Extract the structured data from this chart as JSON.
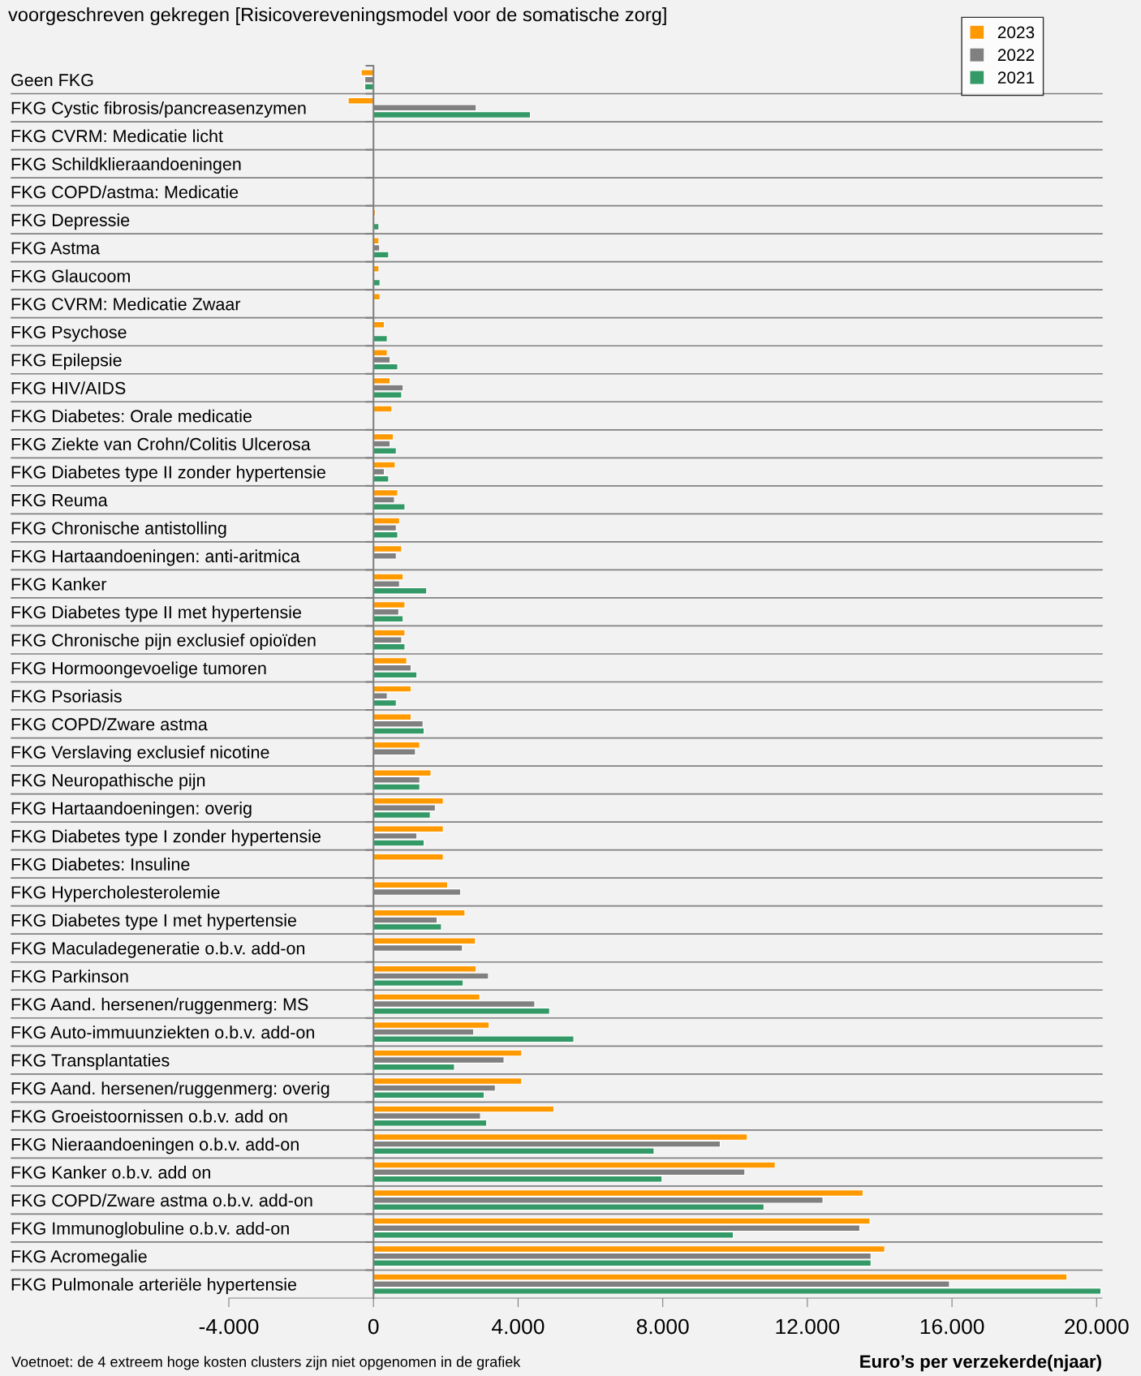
{
  "chart_data": {
    "type": "bar",
    "orientation": "horizontal",
    "title": "voorgeschreven gekregen [Risicovereveningsmodel voor de somatische zorg]",
    "xlabel": "Euro’s per verzekerde(njaar)",
    "annotations": [
      "Voetnoet: de 4 extreem hoge kosten clusters zijn niet opgenomen in de grafiek"
    ],
    "categories": [
      "Geen FKG",
      "FKG Cystic fibrosis/pancreasenzymen",
      "FKG CVRM: Medicatie licht",
      "FKG Schildklieraandoeningen",
      "FKG COPD/astma: Medicatie",
      "FKG Depressie",
      "FKG Astma",
      "FKG Glaucoom",
      "FKG CVRM: Medicatie Zwaar",
      "FKG Psychose",
      "FKG Epilepsie",
      "FKG HIV/AIDS",
      "FKG Diabetes: Orale medicatie",
      "FKG Ziekte van Crohn/Colitis Ulcerosa",
      "FKG Diabetes type II zonder hypertensie",
      "FKG Reuma",
      "FKG Chronische antistolling",
      "FKG Hartaandoeningen: anti-aritmica",
      "FKG Kanker",
      "FKG Diabetes type II met hypertensie",
      "FKG Chronische pijn exclusief opioïden",
      "FKG Hormoongevoelige tumoren",
      "FKG Psoriasis",
      "FKG COPD/Zware astma",
      "FKG Verslaving exclusief nicotine",
      "FKG Neuropathische pijn",
      "FKG Hartaandoeningen: overig",
      "FKG Diabetes type I zonder hypertensie",
      "FKG Diabetes: Insuline",
      "FKG Hypercholesterolemie",
      "FKG Diabetes type I met hypertensie",
      "FKG Maculadegeneratie o.b.v. add-on",
      "FKG Parkinson",
      "FKG Aand. hersenen/ruggenmerg: MS",
      "FKG Auto-immuunziekten o.b.v. add-on",
      "FKG Transplantaties",
      "FKG Aand. hersenen/ruggenmerg: overig",
      "FKG Groeistoornissen o.b.v. add on",
      "FKG Nieraandoeningen o.b.v. add-on",
      "FKG Kanker o.b.v. add on",
      "FKG COPD/Zware astma o.b.v. add-on",
      "FKG Immunoglobuline o.b.v. add-on",
      "FKG Acromegalie",
      "FKG Pulmonale arteriële hypertensie"
    ],
    "series": [
      {
        "name": "2023",
        "color": "#ff9900",
        "values": [
          -340,
          -700,
          null,
          null,
          null,
          50,
          150,
          150,
          180,
          300,
          380,
          460,
          510,
          550,
          600,
          670,
          720,
          780,
          820,
          870,
          870,
          920,
          1040,
          1040,
          1280,
          1590,
          1930,
          1930,
          1930,
          2050,
          2530,
          2820,
          2840,
          2940,
          3200,
          4100,
          4100,
          4990,
          10340,
          11110,
          13540,
          13730,
          14140,
          19180
        ]
      },
      {
        "name": "2022",
        "color": "#808080",
        "values": [
          -240,
          2840,
          null,
          null,
          null,
          null,
          170,
          null,
          null,
          null,
          460,
          820,
          null,
          460,
          300,
          580,
          630,
          630,
          720,
          700,
          780,
          1040,
          380,
          1370,
          1160,
          1280,
          1710,
          1200,
          null,
          2410,
          1760,
          2460,
          3180,
          4460,
          2770,
          3610,
          3370,
          2960,
          9590,
          10270,
          12430,
          13450,
          13760,
          15930
        ]
      },
      {
        "name": "2021",
        "color": "#339966",
        "values": [
          -240,
          4340,
          null,
          null,
          null,
          150,
          420,
          180,
          null,
          380,
          670,
          780,
          null,
          630,
          420,
          870,
          670,
          null,
          1470,
          820,
          870,
          1200,
          630,
          1400,
          null,
          1280,
          1570,
          1400,
          null,
          null,
          1880,
          null,
          2480,
          4870,
          5540,
          2240,
          3060,
          3130,
          7760,
          7980,
          10800,
          9950,
          13760,
          20120
        ]
      }
    ],
    "xlim": [
      -4000,
      20150
    ],
    "xticks": [
      {
        "value": -4000,
        "label": "-4.000"
      },
      0,
      {
        "value": 4000,
        "label": "4.000"
      },
      {
        "value": 8000,
        "label": "8.000"
      },
      {
        "value": 12000,
        "label": "12.000"
      },
      {
        "value": 16000,
        "label": "16.000"
      },
      {
        "value": 20000,
        "label": "20.000"
      }
    ],
    "legend": "top right",
    "grid": false
  }
}
